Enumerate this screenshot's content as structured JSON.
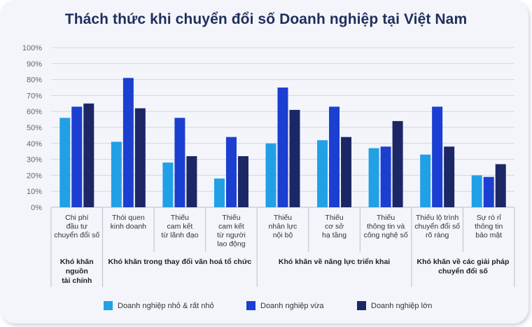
{
  "title": "Thách thức khi chuyển đổi số Doanh nghiệp tại Việt Nam",
  "colors": {
    "small": "#22a0e6",
    "medium": "#1b3fd0",
    "large": "#1c2766",
    "grid": "#d3d7e2",
    "text": "#333333"
  },
  "chart_data": {
    "type": "bar",
    "ylim": [
      0,
      100
    ],
    "y_ticks": [
      "0%",
      "10%",
      "20%",
      "30%",
      "40%",
      "50%",
      "60%",
      "70%",
      "80%",
      "90%",
      "100%"
    ],
    "grid": true,
    "legend_position": "bottom",
    "categories": [
      [
        "Chi phí",
        "đầu tư",
        "chuyển đổi số"
      ],
      [
        "Thói quen",
        "kinh doanh"
      ],
      [
        "Thiếu",
        "cam kết",
        "từ lãnh đạo"
      ],
      [
        "Thiếu",
        "cam kết",
        "từ người",
        "lao động"
      ],
      [
        "Thiếu",
        "nhân lực",
        "nội bộ"
      ],
      [
        "Thiếu",
        "cơ sở",
        "hạ tầng"
      ],
      [
        "Thiếu",
        "thông tin và",
        "công nghệ số"
      ],
      [
        "Thiếu lộ trình",
        "chuyển đổi số",
        "rõ ràng"
      ],
      [
        "Sự rò rỉ",
        "thông tin",
        "bảo mật"
      ]
    ],
    "groups": [
      {
        "label": [
          "Khó khăn",
          "nguồn",
          "tài chính"
        ],
        "span": [
          0,
          0
        ]
      },
      {
        "label": [
          "Khó khăn trong thay đổi văn hoá tổ chức"
        ],
        "span": [
          1,
          3
        ]
      },
      {
        "label": [
          "Khó khăn về năng lực triển khai"
        ],
        "span": [
          4,
          6
        ]
      },
      {
        "label": [
          "Khó khăn về các giải pháp",
          "chuyển đổi số"
        ],
        "span": [
          7,
          8
        ]
      }
    ],
    "series": [
      {
        "name": "Doanh nghiệp nhỏ & rất nhỏ",
        "values": [
          56,
          41,
          28,
          18,
          40,
          42,
          37,
          33,
          20
        ]
      },
      {
        "name": "Doanh nghiệp vừa",
        "values": [
          63,
          81,
          56,
          44,
          75,
          63,
          38,
          63,
          19
        ]
      },
      {
        "name": "Doanh nghiệp lớn",
        "values": [
          65,
          62,
          32,
          32,
          61,
          44,
          54,
          38,
          27
        ]
      }
    ]
  }
}
